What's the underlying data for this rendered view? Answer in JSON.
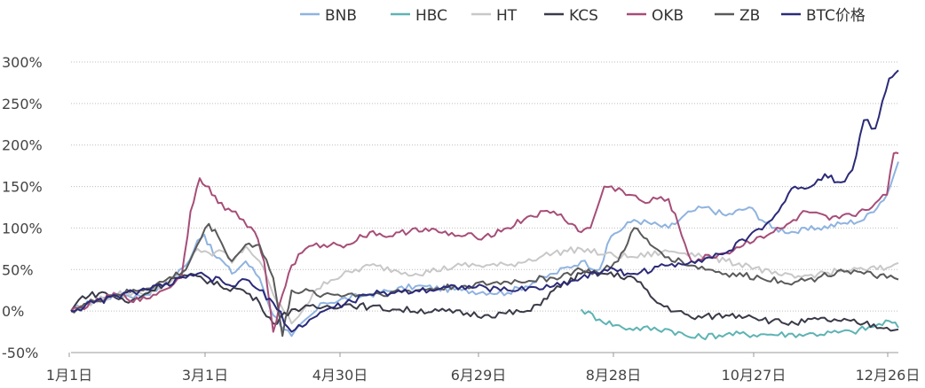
{
  "chart_data": {
    "type": "line",
    "title": "",
    "xlabel": "",
    "ylabel": "",
    "x_tick_labels": [
      "1月1日",
      "3月1日",
      "4月30日",
      "6月29日",
      "8月28日",
      "10月27日",
      "12月26日"
    ],
    "y_tick_labels": [
      "300%",
      "250%",
      "200%",
      "150%",
      "100%",
      "50%",
      "0%",
      "-50%"
    ],
    "y_ticks": [
      300,
      250,
      200,
      150,
      100,
      50,
      0,
      -50
    ],
    "ylim": [
      -50,
      300
    ],
    "xlim": [
      0,
      360
    ],
    "grid": "horizontal dotted",
    "legend_position": "top",
    "series": [
      {
        "name": "BNB",
        "color": "#8fb3e0",
        "x": [
          0,
          10,
          20,
          30,
          40,
          50,
          55,
          58,
          62,
          66,
          70,
          76,
          82,
          88,
          96,
          110,
          130,
          150,
          170,
          190,
          210,
          222,
          230,
          235,
          245,
          260,
          270,
          276,
          285,
          295,
          305,
          315,
          325,
          335,
          345,
          355,
          360
        ],
        "values": [
          0,
          12,
          20,
          18,
          30,
          55,
          85,
          92,
          68,
          60,
          45,
          60,
          40,
          -5,
          -30,
          10,
          20,
          30,
          25,
          22,
          45,
          60,
          50,
          90,
          110,
          100,
          120,
          125,
          115,
          125,
          100,
          95,
          100,
          105,
          110,
          140,
          180
        ]
      },
      {
        "name": "HBC",
        "color": "#5fb3b3",
        "x": [
          222,
          230,
          240,
          260,
          270,
          285,
          300,
          320,
          340,
          350,
          356,
          360
        ],
        "values": [
          2,
          -10,
          -20,
          -22,
          -32,
          -28,
          -28,
          -28,
          -25,
          -18,
          -12,
          -20
        ]
      },
      {
        "name": "HT",
        "color": "#c8c8c8",
        "x": [
          0,
          10,
          20,
          30,
          40,
          50,
          55,
          60,
          66,
          70,
          76,
          82,
          88,
          96,
          110,
          130,
          150,
          170,
          190,
          210,
          222,
          232,
          245,
          260,
          270,
          285,
          295,
          305,
          315,
          325,
          335,
          345,
          355,
          360
        ],
        "values": [
          0,
          12,
          20,
          22,
          30,
          50,
          75,
          70,
          72,
          58,
          78,
          60,
          20,
          -15,
          35,
          55,
          45,
          55,
          55,
          70,
          75,
          68,
          65,
          72,
          70,
          60,
          55,
          45,
          40,
          45,
          48,
          50,
          52,
          58
        ]
      },
      {
        "name": "KCS",
        "color": "#3a3a48",
        "x": [
          0,
          5,
          15,
          25,
          35,
          45,
          55,
          65,
          75,
          82,
          88,
          96,
          110,
          120,
          130,
          140,
          160,
          180,
          200,
          210,
          222,
          232,
          245,
          255,
          270,
          285,
          295,
          305,
          315,
          325,
          335,
          345,
          355,
          360
        ],
        "values": [
          0,
          18,
          22,
          10,
          25,
          40,
          42,
          30,
          25,
          10,
          -15,
          2,
          5,
          8,
          5,
          2,
          0,
          -5,
          0,
          25,
          45,
          45,
          40,
          10,
          -8,
          -5,
          -5,
          -12,
          -15,
          -10,
          -12,
          -15,
          -20,
          -22
        ]
      },
      {
        "name": "OKB",
        "color": "#a64d78",
        "x": [
          0,
          10,
          20,
          30,
          40,
          48,
          52,
          56,
          60,
          64,
          70,
          75,
          80,
          84,
          88,
          92,
          96,
          102,
          110,
          120,
          130,
          140,
          150,
          160,
          170,
          180,
          190,
          200,
          210,
          218,
          222,
          226,
          232,
          240,
          250,
          255,
          260,
          270,
          285,
          300,
          310,
          320,
          330,
          340,
          350,
          355,
          358,
          360
        ],
        "values": [
          0,
          10,
          20,
          12,
          25,
          40,
          120,
          160,
          150,
          130,
          120,
          110,
          95,
          60,
          -25,
          20,
          55,
          75,
          80,
          80,
          95,
          90,
          100,
          95,
          90,
          90,
          100,
          115,
          120,
          105,
          95,
          100,
          150,
          145,
          130,
          135,
          135,
          60,
          70,
          90,
          100,
          120,
          110,
          115,
          130,
          140,
          190,
          190
        ]
      },
      {
        "name": "ZB",
        "color": "#5a5a5a",
        "x": [
          0,
          10,
          20,
          30,
          40,
          50,
          55,
          60,
          64,
          70,
          76,
          82,
          88,
          92,
          96,
          110,
          130,
          150,
          170,
          190,
          210,
          222,
          230,
          238,
          245,
          252,
          260,
          270,
          285,
          300,
          315,
          325,
          335,
          345,
          355,
          360
        ],
        "values": [
          0,
          12,
          20,
          25,
          35,
          50,
          80,
          105,
          90,
          60,
          80,
          80,
          40,
          -30,
          25,
          20,
          20,
          25,
          30,
          35,
          40,
          50,
          45,
          60,
          100,
          80,
          65,
          55,
          45,
          40,
          35,
          40,
          50,
          45,
          40,
          38
        ]
      },
      {
        "name": "BTC价格",
        "color": "#2b2a78",
        "x": [
          0,
          10,
          20,
          30,
          40,
          50,
          55,
          60,
          66,
          70,
          76,
          82,
          88,
          96,
          110,
          130,
          150,
          170,
          190,
          210,
          222,
          232,
          245,
          260,
          270,
          285,
          295,
          305,
          315,
          322,
          328,
          335,
          340,
          345,
          350,
          356,
          360
        ],
        "values": [
          0,
          10,
          18,
          25,
          30,
          40,
          45,
          40,
          35,
          30,
          38,
          25,
          10,
          -25,
          0,
          20,
          25,
          30,
          25,
          30,
          40,
          50,
          45,
          55,
          60,
          70,
          90,
          110,
          150,
          150,
          165,
          155,
          170,
          230,
          220,
          280,
          290
        ]
      }
    ],
    "legend": [
      "BNB",
      "HBC",
      "HT",
      "KCS",
      "OKB",
      "ZB",
      "BTC价格"
    ]
  }
}
